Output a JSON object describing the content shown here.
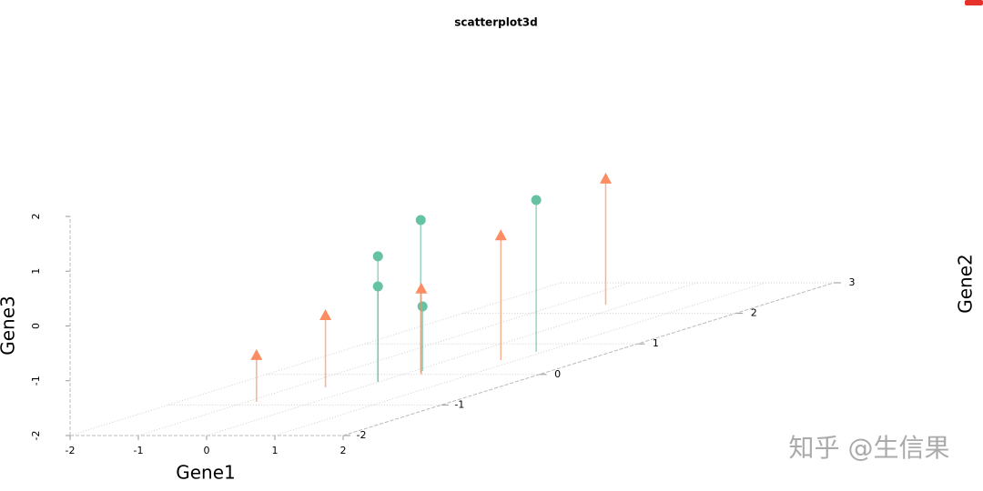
{
  "chart_data": {
    "type": "scatter3d",
    "title": "scatterplot3d",
    "x_label": "Gene1",
    "y_label": "Gene2",
    "z_label": "Gene3",
    "xlim": [
      -2,
      2
    ],
    "xticks": [
      -2,
      -1,
      0,
      1,
      2
    ],
    "ylim": [
      -2,
      3
    ],
    "yticks": [
      -2,
      -1,
      0,
      1,
      2,
      3
    ],
    "zlim": [
      -2,
      2
    ],
    "zticks": [
      -2,
      -1,
      0,
      1,
      2
    ],
    "grid": true,
    "series": [
      {
        "color": "#66c2a5",
        "marker": "circle",
        "x": [
          -0.02,
          -0.02,
          0.19,
          0.13,
          0.89
        ],
        "y": [
          -0.24,
          -0.24,
          0.05,
          0.11,
          0.74
        ],
        "z": [
          0.29,
          -0.26,
          0.79,
          -0.82,
          0.77
        ]
      },
      {
        "color": "#fc8d62",
        "marker": "triangle",
        "x": [
          -0.85,
          -0.53,
          0.27,
          0.76,
          -0.32
        ],
        "y": [
          -0.9,
          -0.42,
          0.0,
          0.47,
          2.29
        ],
        "z": [
          -1.15,
          -0.69,
          -0.44,
          0.27,
          0.29
        ]
      }
    ]
  },
  "watermark": "知乎 @生信果"
}
